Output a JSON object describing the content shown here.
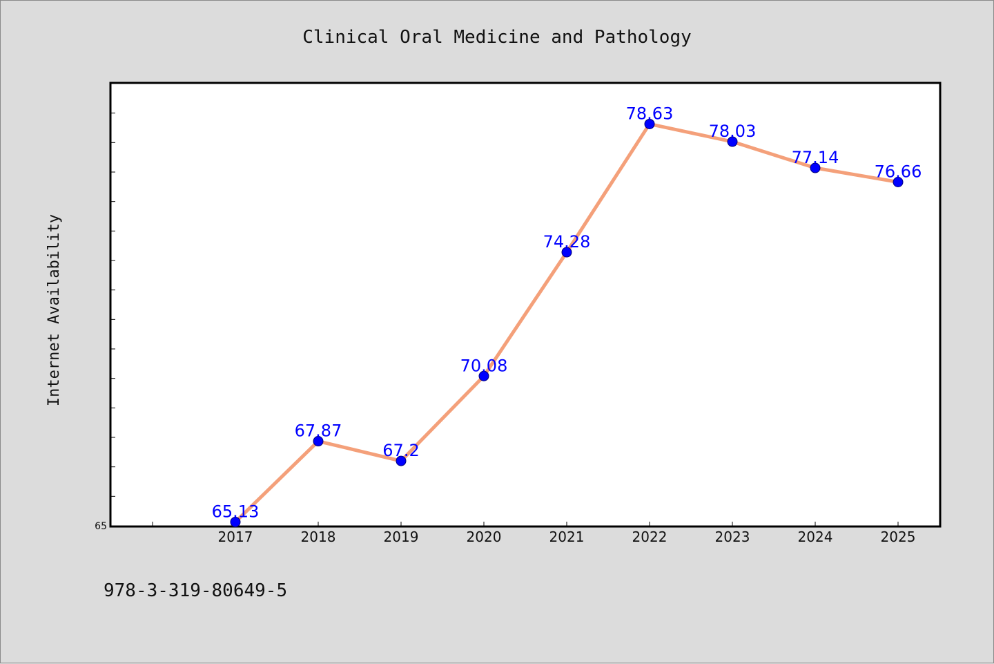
{
  "colors": {
    "background": "#dcdcdc",
    "plot_background": "#ffffff",
    "line": "#f4a07a",
    "marker": "#0000ff",
    "data_label": "#0000ff"
  },
  "footer_text": "978-3-319-80649-5",
  "chart_data": {
    "type": "line",
    "title": "Clinical Oral Medicine and Pathology",
    "xlabel": "",
    "ylabel": "Internet Availability",
    "categories": [
      "2017",
      "2018",
      "2019",
      "2020",
      "2021",
      "2022",
      "2023",
      "2024",
      "2025"
    ],
    "series": [
      {
        "values": [
          65.13,
          67.87,
          67.2,
          70.08,
          74.28,
          78.63,
          78.03,
          77.14,
          76.66
        ],
        "labels": [
          "65.13",
          "67.87",
          "67.2",
          "70.08",
          "74.28",
          "78.63",
          "78.03",
          "77.14",
          "76.66"
        ]
      }
    ],
    "ylim": [
      65,
      80
    ],
    "y_tick_labels": [
      "65"
    ],
    "grid": false,
    "legend": "none"
  }
}
